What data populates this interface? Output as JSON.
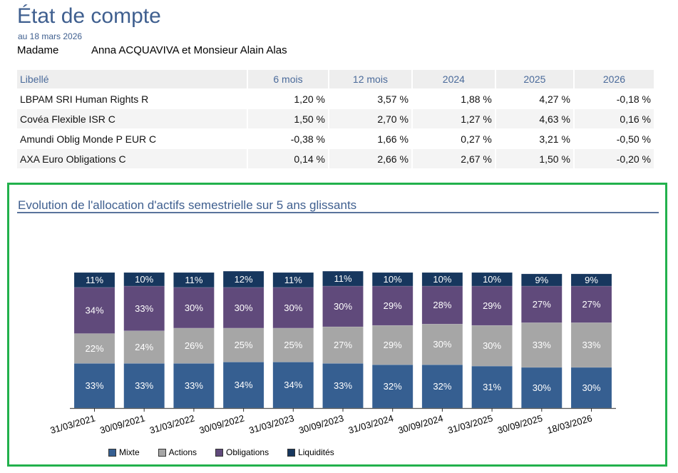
{
  "header": {
    "title": "État de compte",
    "date": "au 18 mars 2026",
    "civility": "Madame",
    "client_name": "Anna ACQUAVIVA et Monsieur Alain Alas"
  },
  "table": {
    "columns": [
      "Libellé",
      "6 mois",
      "12 mois",
      "2024",
      "2025",
      "2026"
    ],
    "rows": [
      [
        "LBPAM SRI Human Rights R",
        "1,20 %",
        "3,57 %",
        "1,88 %",
        "4,27 %",
        "-0,18 %"
      ],
      [
        "Covéa Flexible ISR C",
        "1,50 %",
        "2,70 %",
        "1,27 %",
        "4,63 %",
        "0,16 %"
      ],
      [
        "Amundi Oblig Monde P EUR C",
        "-0,38 %",
        "1,66 %",
        "0,27 %",
        "3,21 %",
        "-0,50 %"
      ],
      [
        "AXA Euro Obligations C",
        "0,14 %",
        "2,66 %",
        "2,67 %",
        "1,50 %",
        "-0,20 %"
      ]
    ]
  },
  "colors": {
    "title": "#3f5f8f",
    "frame": "#22b14c",
    "mixte": "#365f91",
    "actions": "#a6a6a6",
    "obligations": "#604a7b",
    "liquidites": "#17375e"
  },
  "chart_data": {
    "type": "bar",
    "stacked": true,
    "title": "Evolution de l'allocation d'actifs semestrielle sur 5 ans glissants",
    "xlabel": "",
    "ylabel": "",
    "ylim": [
      0,
      100
    ],
    "grid": false,
    "legend_position": "bottom",
    "categories": [
      "31/03/2021",
      "30/09/2021",
      "31/03/2022",
      "30/09/2022",
      "31/03/2023",
      "30/09/2023",
      "31/03/2024",
      "30/09/2024",
      "31/03/2025",
      "30/09/2025",
      "18/03/2026"
    ],
    "series": [
      {
        "name": "Mixte",
        "color": "#365f91",
        "values": [
          33,
          33,
          33,
          34,
          34,
          33,
          32,
          32,
          31,
          30,
          30
        ]
      },
      {
        "name": "Actions",
        "color": "#a6a6a6",
        "values": [
          22,
          24,
          26,
          25,
          25,
          27,
          29,
          30,
          30,
          33,
          33
        ]
      },
      {
        "name": "Obligations",
        "color": "#604a7b",
        "values": [
          34,
          33,
          30,
          30,
          30,
          30,
          29,
          28,
          29,
          27,
          27
        ]
      },
      {
        "name": "Liquidités",
        "color": "#17375e",
        "values": [
          11,
          10,
          11,
          12,
          11,
          11,
          10,
          10,
          10,
          9,
          9
        ]
      }
    ],
    "value_suffix": "%"
  }
}
